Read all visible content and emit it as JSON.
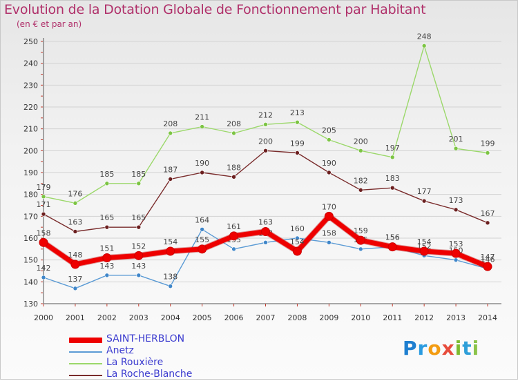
{
  "chart_data": {
    "type": "line",
    "title": "Evolution de la Dotation Globale de Fonctionnement par Habitant",
    "subtitle": "(en € et par an)",
    "xlabel": "",
    "ylabel": "",
    "categories": [
      "2000",
      "2001",
      "2002",
      "2003",
      "2004",
      "2005",
      "2006",
      "2007",
      "2008",
      "2009",
      "2010",
      "2011",
      "2012",
      "2013",
      "2014"
    ],
    "ylim": [
      130,
      250
    ],
    "yticks": [
      130,
      140,
      150,
      160,
      170,
      180,
      190,
      200,
      210,
      220,
      230,
      240,
      250
    ],
    "grid": true,
    "series": [
      {
        "name": "Anetz",
        "color": "#5b9bd5",
        "marker": "#3f86c9",
        "values": [
          142,
          137,
          143,
          143,
          138,
          164,
          155,
          158,
          160,
          158,
          155,
          156,
          152,
          150,
          146
        ]
      },
      {
        "name": "La Rouxière",
        "color": "#9bd86a",
        "marker": "#7cc443",
        "values": [
          179,
          176,
          185,
          185,
          208,
          211,
          208,
          212,
          213,
          205,
          200,
          197,
          248,
          201,
          199
        ]
      },
      {
        "name": "La Roche-Blanche",
        "color": "#7a2c2c",
        "marker": "#6b1f1f",
        "values": [
          171,
          163,
          165,
          165,
          187,
          190,
          188,
          200,
          199,
          190,
          182,
          183,
          177,
          173,
          167
        ]
      },
      {
        "name": "SAINT-HERBLON",
        "color": "#ee0000",
        "marker": "#ee0000",
        "values": [
          158,
          148,
          151,
          152,
          154,
          155,
          161,
          163,
          154,
          170,
          159,
          156,
          154,
          153,
          147
        ]
      }
    ]
  },
  "legend": [
    {
      "label": "SAINT-HERBLON",
      "color": "#ee0000",
      "width": 8
    },
    {
      "label": "Anetz",
      "color": "#5b9bd5",
      "width": 2
    },
    {
      "label": "La Rouxière",
      "color": "#9bd86a",
      "width": 2
    },
    {
      "label": "La Roche-Blanche",
      "color": "#7a2c2c",
      "width": 2
    }
  ],
  "brand": "Proxiti"
}
